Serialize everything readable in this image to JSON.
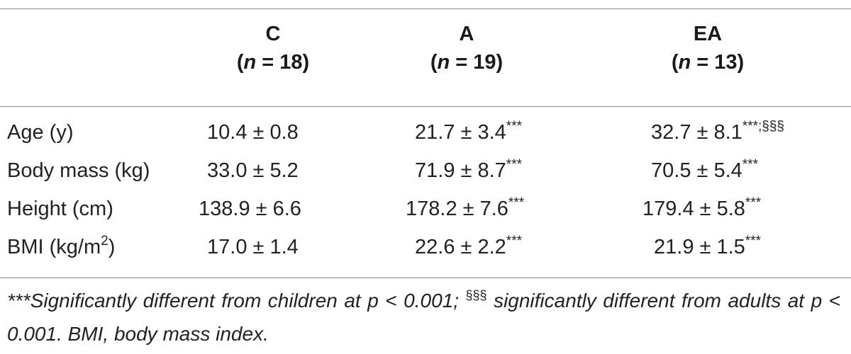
{
  "table": {
    "columns": [
      {
        "group": "C",
        "n_label": "n",
        "n_rest": " = 18)"
      },
      {
        "group": "A",
        "n_label": "n",
        "n_rest": " = 19)"
      },
      {
        "group": "EA",
        "n_label": "n",
        "n_rest": " = 13)"
      }
    ],
    "rows": [
      {
        "label": "Age (y)",
        "label_sup": "",
        "label_suffix": "",
        "c": "10.4 ± 0.8",
        "c_sup": "",
        "a": "21.7 ± 3.4",
        "a_sup": "***",
        "ea": "32.7 ± 8.1",
        "ea_sup": "***;",
        "ea_sup2": "§§§"
      },
      {
        "label": "Body mass (kg)",
        "label_sup": "",
        "label_suffix": "",
        "c": "33.0 ± 5.2",
        "c_sup": "",
        "a": "71.9 ± 8.7",
        "a_sup": "***",
        "ea": "70.5 ± 5.4",
        "ea_sup": "***",
        "ea_sup2": ""
      },
      {
        "label": "Height (cm)",
        "label_sup": "",
        "label_suffix": "",
        "c": "138.9 ± 6.6",
        "c_sup": "",
        "a": "178.2 ± 7.6",
        "a_sup": "***",
        "ea": "179.4 ± 5.8",
        "ea_sup": "***",
        "ea_sup2": ""
      },
      {
        "label": "BMI (kg/m",
        "label_sup": "2",
        "label_suffix": ")",
        "c": "17.0 ± 1.4",
        "c_sup": "",
        "a": "22.6 ± 2.2",
        "a_sup": "***",
        "ea": "21.9 ± 1.5",
        "ea_sup": "***",
        "ea_sup2": ""
      }
    ]
  },
  "footnote": {
    "mark1": "***",
    "text1": "Significantly different from children at p < 0.001; ",
    "mark2": "§§§",
    "text2": " significantly different from adults at p < 0.001. BMI, body mass index."
  }
}
